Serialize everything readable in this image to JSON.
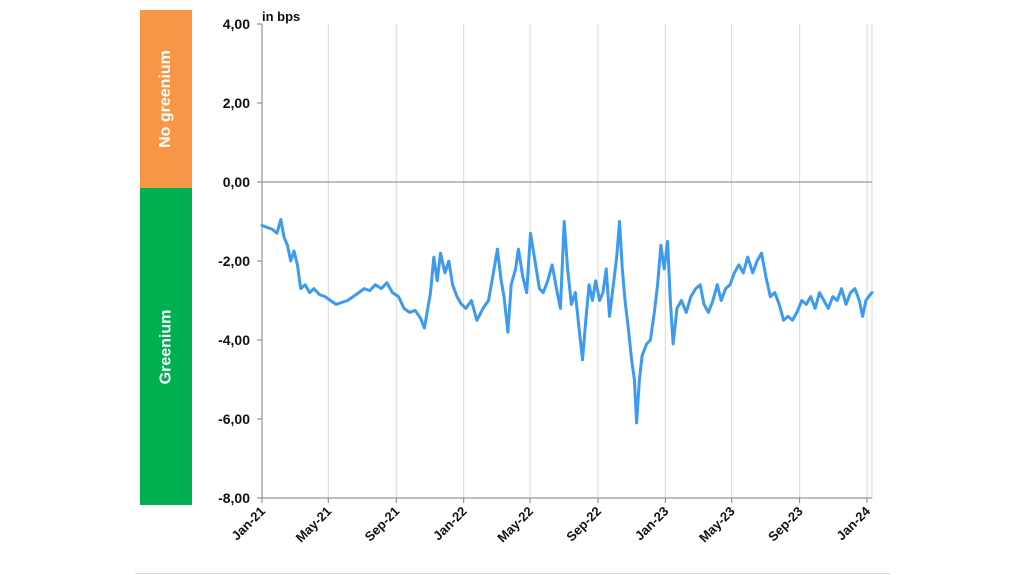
{
  "bands": {
    "no_greenium": {
      "label": "No greenium",
      "color": "#F79646"
    },
    "greenium": {
      "label": "Greenium",
      "color": "#00B050"
    }
  },
  "chart_data": {
    "type": "line",
    "unit_label": "in bps",
    "title": "",
    "xlabel": "",
    "ylabel": "",
    "ylim": [
      -8,
      4
    ],
    "xlim": [
      "2021-01-01",
      "2024-01-10"
    ],
    "y_ticks": [
      "4,00",
      "2,00",
      "0,00",
      "-2,00",
      "-4,00",
      "-6,00",
      "-8,00"
    ],
    "y_tick_values": [
      4,
      2,
      0,
      -2,
      -4,
      -6,
      -8
    ],
    "x_ticks": [
      "Jan-21",
      "May-21",
      "Sep-21",
      "Jan-22",
      "May-22",
      "Sep-22",
      "Jan-23",
      "May-23",
      "Sep-23",
      "Jan-24"
    ],
    "x_tick_dates": [
      "2021-01-01",
      "2021-05-01",
      "2021-09-01",
      "2022-01-01",
      "2022-05-01",
      "2022-09-01",
      "2023-01-01",
      "2023-05-01",
      "2023-09-01",
      "2024-01-01"
    ],
    "grid": true,
    "series": [
      {
        "name": "",
        "color": "#3C9AF0",
        "points": [
          [
            "2021-01-01",
            -1.1
          ],
          [
            "2021-01-10",
            -1.15
          ],
          [
            "2021-01-20",
            -1.2
          ],
          [
            "2021-01-28",
            -1.3
          ],
          [
            "2021-02-04",
            -0.95
          ],
          [
            "2021-02-10",
            -1.4
          ],
          [
            "2021-02-16",
            -1.6
          ],
          [
            "2021-02-22",
            -2.0
          ],
          [
            "2021-02-28",
            -1.75
          ],
          [
            "2021-03-06",
            -2.1
          ],
          [
            "2021-03-12",
            -2.7
          ],
          [
            "2021-03-20",
            -2.6
          ],
          [
            "2021-03-28",
            -2.8
          ],
          [
            "2021-04-05",
            -2.7
          ],
          [
            "2021-04-15",
            -2.85
          ],
          [
            "2021-04-25",
            -2.9
          ],
          [
            "2021-05-05",
            -3.0
          ],
          [
            "2021-05-15",
            -3.1
          ],
          [
            "2021-05-25",
            -3.05
          ],
          [
            "2021-06-05",
            -3.0
          ],
          [
            "2021-06-15",
            -2.9
          ],
          [
            "2021-06-25",
            -2.8
          ],
          [
            "2021-07-05",
            -2.7
          ],
          [
            "2021-07-15",
            -2.75
          ],
          [
            "2021-07-25",
            -2.6
          ],
          [
            "2021-08-05",
            -2.7
          ],
          [
            "2021-08-15",
            -2.55
          ],
          [
            "2021-08-25",
            -2.8
          ],
          [
            "2021-09-05",
            -2.9
          ],
          [
            "2021-09-15",
            -3.2
          ],
          [
            "2021-09-25",
            -3.3
          ],
          [
            "2021-10-05",
            -3.25
          ],
          [
            "2021-10-15",
            -3.45
          ],
          [
            "2021-10-22",
            -3.7
          ],
          [
            "2021-10-28",
            -3.2
          ],
          [
            "2021-11-02",
            -2.8
          ],
          [
            "2021-11-08",
            -1.9
          ],
          [
            "2021-11-14",
            -2.5
          ],
          [
            "2021-11-20",
            -1.8
          ],
          [
            "2021-11-28",
            -2.3
          ],
          [
            "2021-12-05",
            -2.0
          ],
          [
            "2021-12-12",
            -2.6
          ],
          [
            "2021-12-20",
            -2.9
          ],
          [
            "2021-12-28",
            -3.1
          ],
          [
            "2022-01-05",
            -3.2
          ],
          [
            "2022-01-15",
            -3.0
          ],
          [
            "2022-01-25",
            -3.5
          ],
          [
            "2022-02-05",
            -3.2
          ],
          [
            "2022-02-15",
            -3.0
          ],
          [
            "2022-02-25",
            -2.2
          ],
          [
            "2022-03-03",
            -1.7
          ],
          [
            "2022-03-10",
            -2.5
          ],
          [
            "2022-03-15",
            -2.9
          ],
          [
            "2022-03-22",
            -3.8
          ],
          [
            "2022-03-28",
            -2.6
          ],
          [
            "2022-04-05",
            -2.2
          ],
          [
            "2022-04-10",
            -1.7
          ],
          [
            "2022-04-18",
            -2.4
          ],
          [
            "2022-04-25",
            -2.8
          ],
          [
            "2022-05-02",
            -1.3
          ],
          [
            "2022-05-10",
            -2.0
          ],
          [
            "2022-05-18",
            -2.7
          ],
          [
            "2022-05-25",
            -2.8
          ],
          [
            "2022-06-02",
            -2.5
          ],
          [
            "2022-06-10",
            -2.1
          ],
          [
            "2022-06-18",
            -2.7
          ],
          [
            "2022-06-25",
            -3.2
          ],
          [
            "2022-07-02",
            -1.0
          ],
          [
            "2022-07-08",
            -2.2
          ],
          [
            "2022-07-15",
            -3.1
          ],
          [
            "2022-07-22",
            -2.8
          ],
          [
            "2022-07-28",
            -3.6
          ],
          [
            "2022-08-04",
            -4.5
          ],
          [
            "2022-08-10",
            -3.5
          ],
          [
            "2022-08-16",
            -2.6
          ],
          [
            "2022-08-22",
            -3.0
          ],
          [
            "2022-08-28",
            -2.5
          ],
          [
            "2022-09-04",
            -3.0
          ],
          [
            "2022-09-10",
            -2.8
          ],
          [
            "2022-09-16",
            -2.2
          ],
          [
            "2022-09-22",
            -3.4
          ],
          [
            "2022-09-28",
            -2.7
          ],
          [
            "2022-10-05",
            -1.9
          ],
          [
            "2022-10-10",
            -1.0
          ],
          [
            "2022-10-15",
            -2.2
          ],
          [
            "2022-10-20",
            -3.0
          ],
          [
            "2022-10-26",
            -3.7
          ],
          [
            "2022-11-01",
            -4.5
          ],
          [
            "2022-11-06",
            -5.0
          ],
          [
            "2022-11-10",
            -6.1
          ],
          [
            "2022-11-15",
            -5.0
          ],
          [
            "2022-11-20",
            -4.4
          ],
          [
            "2022-11-28",
            -4.1
          ],
          [
            "2022-12-05",
            -4.0
          ],
          [
            "2022-12-12",
            -3.3
          ],
          [
            "2022-12-18",
            -2.6
          ],
          [
            "2022-12-24",
            -1.6
          ],
          [
            "2022-12-30",
            -2.2
          ],
          [
            "2023-01-05",
            -1.5
          ],
          [
            "2023-01-10",
            -3.0
          ],
          [
            "2023-01-15",
            -4.1
          ],
          [
            "2023-01-22",
            -3.2
          ],
          [
            "2023-01-30",
            -3.0
          ],
          [
            "2023-02-08",
            -3.3
          ],
          [
            "2023-02-16",
            -2.9
          ],
          [
            "2023-02-25",
            -2.7
          ],
          [
            "2023-03-05",
            -2.6
          ],
          [
            "2023-03-12",
            -3.1
          ],
          [
            "2023-03-20",
            -3.3
          ],
          [
            "2023-03-28",
            -3.0
          ],
          [
            "2023-04-05",
            -2.6
          ],
          [
            "2023-04-12",
            -3.0
          ],
          [
            "2023-04-20",
            -2.7
          ],
          [
            "2023-04-28",
            -2.6
          ],
          [
            "2023-05-06",
            -2.3
          ],
          [
            "2023-05-14",
            -2.1
          ],
          [
            "2023-05-22",
            -2.3
          ],
          [
            "2023-05-30",
            -1.9
          ],
          [
            "2023-06-08",
            -2.3
          ],
          [
            "2023-06-16",
            -2.0
          ],
          [
            "2023-06-24",
            -1.8
          ],
          [
            "2023-07-02",
            -2.4
          ],
          [
            "2023-07-10",
            -2.9
          ],
          [
            "2023-07-18",
            -2.8
          ],
          [
            "2023-07-26",
            -3.1
          ],
          [
            "2023-08-03",
            -3.5
          ],
          [
            "2023-08-11",
            -3.4
          ],
          [
            "2023-08-19",
            -3.5
          ],
          [
            "2023-08-27",
            -3.3
          ],
          [
            "2023-09-05",
            -3.0
          ],
          [
            "2023-09-13",
            -3.1
          ],
          [
            "2023-09-21",
            -2.9
          ],
          [
            "2023-09-29",
            -3.2
          ],
          [
            "2023-10-07",
            -2.8
          ],
          [
            "2023-10-15",
            -3.0
          ],
          [
            "2023-10-23",
            -3.2
          ],
          [
            "2023-10-31",
            -2.9
          ],
          [
            "2023-11-08",
            -3.0
          ],
          [
            "2023-11-16",
            -2.7
          ],
          [
            "2023-11-24",
            -3.1
          ],
          [
            "2023-12-02",
            -2.8
          ],
          [
            "2023-12-10",
            -2.7
          ],
          [
            "2023-12-18",
            -3.0
          ],
          [
            "2023-12-24",
            -3.4
          ],
          [
            "2023-12-30",
            -3.0
          ],
          [
            "2024-01-04",
            -2.9
          ],
          [
            "2024-01-10",
            -2.8
          ]
        ]
      }
    ]
  }
}
